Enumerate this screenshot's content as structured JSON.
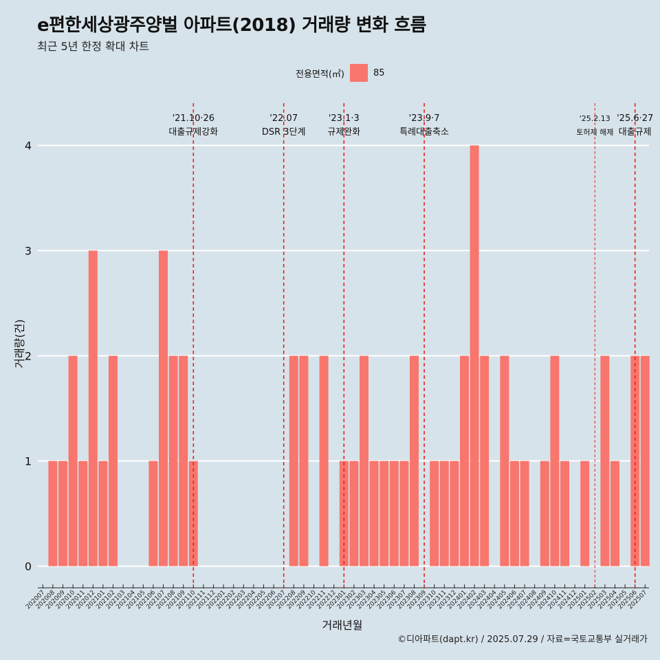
{
  "title": "e편한세상광주양벌 아파트(2018) 거래량 변화 흐름",
  "subtitle": "최근 5년 한정 확대 차트",
  "legend": {
    "title": "전용면적(㎡)",
    "items": [
      {
        "label": "85",
        "color": "#f8766d"
      }
    ]
  },
  "caption": "©디아파트(dapt.kr) / 2025.07.29 / 자료=국토교통부 실거래가",
  "chart_data": {
    "type": "bar",
    "xlabel": "거래년월",
    "ylabel": "거래량(건)",
    "ylim": [
      0,
      4
    ],
    "yticks": [
      0,
      1,
      2,
      3,
      4
    ],
    "grid": true,
    "bar_color": "#f8766d",
    "categories": [
      "202007",
      "202008",
      "202009",
      "202010",
      "202011",
      "202012",
      "202101",
      "202102",
      "202103",
      "202104",
      "202105",
      "202106",
      "202107",
      "202108",
      "202109",
      "202110",
      "202111",
      "202112",
      "202201",
      "202202",
      "202203",
      "202204",
      "202205",
      "202206",
      "202207",
      "202208",
      "202209",
      "202210",
      "202211",
      "202212",
      "202301",
      "202302",
      "202303",
      "202304",
      "202305",
      "202306",
      "202307",
      "202308",
      "202309",
      "202310",
      "202311",
      "202312",
      "202401",
      "202402",
      "202403",
      "202404",
      "202405",
      "202406",
      "202407",
      "202408",
      "202409",
      "202410",
      "202411",
      "202412",
      "202501",
      "202502",
      "202503",
      "202504",
      "202505",
      "202506",
      "202507"
    ],
    "series": [
      {
        "name": "85",
        "values": [
          0,
          1,
          1,
          2,
          1,
          3,
          1,
          2,
          0,
          0,
          0,
          1,
          3,
          2,
          2,
          1,
          0,
          0,
          0,
          0,
          0,
          0,
          0,
          0,
          0,
          2,
          2,
          0,
          2,
          0,
          1,
          1,
          2,
          1,
          1,
          1,
          1,
          2,
          0,
          1,
          1,
          1,
          2,
          4,
          2,
          0,
          2,
          1,
          1,
          0,
          1,
          2,
          1,
          0,
          1,
          0,
          2,
          1,
          0,
          2,
          2
        ]
      }
    ],
    "annotations": [
      {
        "category": "202110",
        "lines": [
          "'21.10·26",
          "대출규제강화"
        ],
        "style": "dashed"
      },
      {
        "category": "202207",
        "lines": [
          "'22.07",
          "DSR 3단계"
        ],
        "style": "dashed"
      },
      {
        "category": "202301",
        "lines": [
          "'23.1·3",
          "규제완화"
        ],
        "style": "dashed"
      },
      {
        "category": "202309",
        "lines": [
          "'23.9·7",
          "특례대출축소"
        ],
        "style": "dashed"
      },
      {
        "category": "202502",
        "lines": [
          "'25.2.13",
          "토허제 해제"
        ],
        "style": "thin"
      },
      {
        "category": "202506",
        "lines": [
          "'25.6·27",
          "대출규제"
        ],
        "style": "dashed"
      }
    ]
  }
}
